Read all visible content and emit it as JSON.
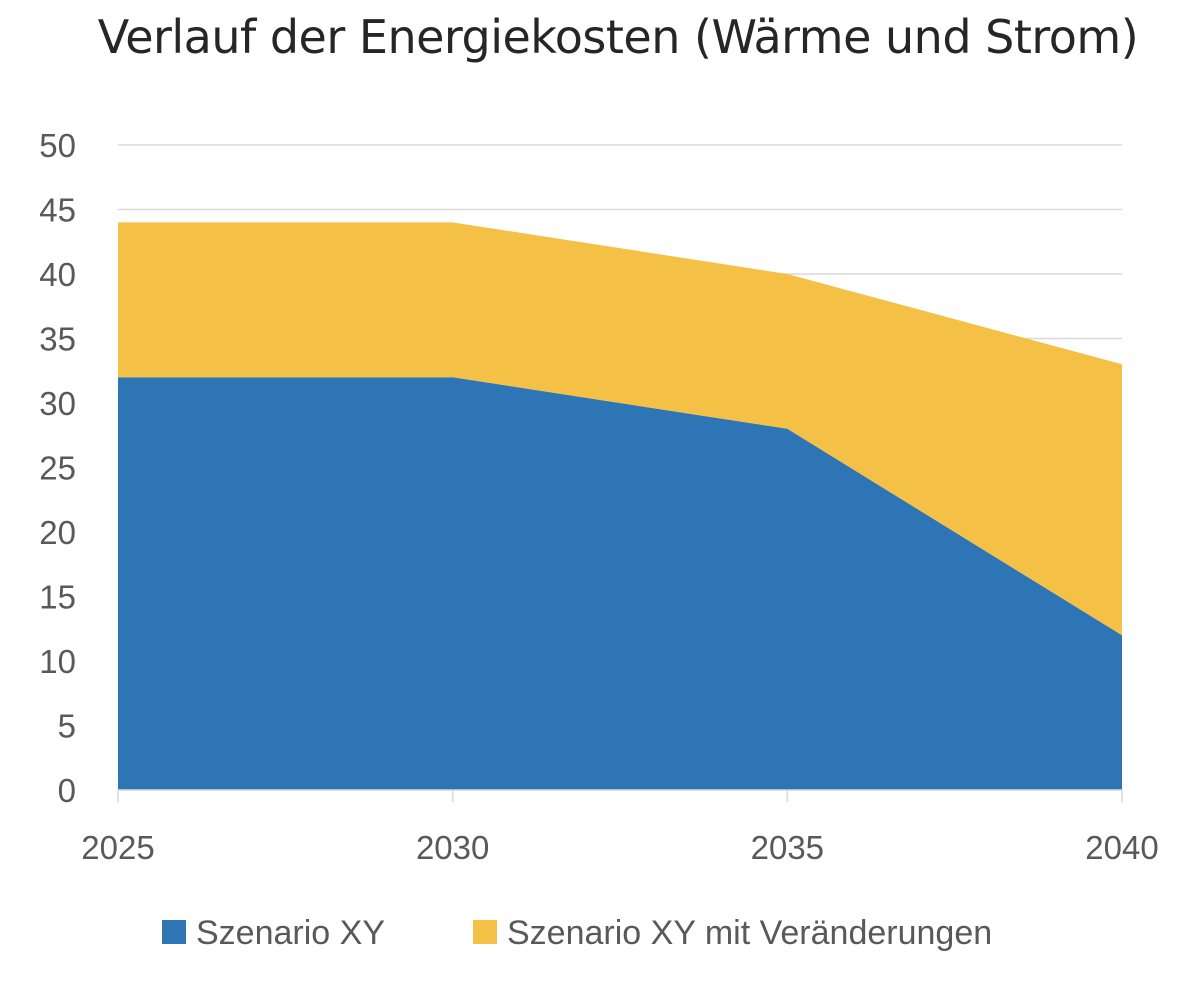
{
  "chart_data": {
    "type": "area",
    "stacked": true,
    "title": "Verlauf der Energiekosten (Wärme und Strom)",
    "xlabel": "",
    "ylabel": "",
    "x": [
      "2025",
      "2030",
      "2035",
      "2040"
    ],
    "ylim": [
      0,
      50
    ],
    "yticks": [
      0,
      5,
      10,
      15,
      20,
      25,
      30,
      35,
      40,
      45,
      50
    ],
    "grid": true,
    "legend": "bottom",
    "series": [
      {
        "name": "Szenario XY",
        "values": [
          32,
          32,
          28,
          12
        ],
        "color": "#2e75b6"
      },
      {
        "name": "Szenario XY mit Veränderungen",
        "values": [
          12,
          12,
          12,
          21
        ],
        "color": "#f4c045"
      }
    ]
  }
}
